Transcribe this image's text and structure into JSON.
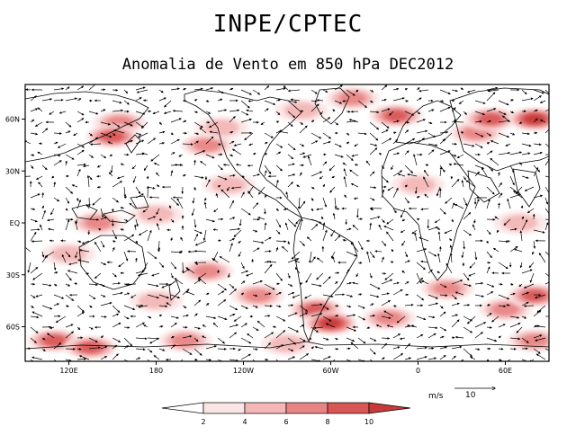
{
  "header": {
    "org": "INPE/CPTEC",
    "subtitle": "Anomalia de Vento em 850 hPa DEC2012"
  },
  "chart_data": {
    "type": "heatmap",
    "title": "Anomalia de Vento em 850 hPa DEC2012",
    "variable": "wind anomaly at 850 hPa (vectors) with speed shading",
    "x_ticks": [
      "120E",
      "180",
      "120W",
      "60W",
      "0",
      "60E"
    ],
    "x_tick_lon": [
      120,
      180,
      240,
      300,
      360,
      420
    ],
    "y_ticks": [
      "60N",
      "30N",
      "EQ",
      "30S",
      "60S"
    ],
    "y_tick_lat": [
      60,
      30,
      0,
      -30,
      -60
    ],
    "lon_range": [
      90,
      450
    ],
    "lat_range": [
      -80,
      80
    ],
    "colorbar": {
      "labels": [
        "2",
        "4",
        "6",
        "8",
        "10"
      ],
      "colors": [
        "#ffffff",
        "#fbe4e4",
        "#f4b6b6",
        "#e98484",
        "#d85656",
        "#c83a3a"
      ]
    },
    "reference_vector": {
      "units": "m/s",
      "value": "10"
    },
    "shaded_regions": [
      {
        "lon": 155,
        "lat": 58,
        "level": 3
      },
      {
        "lon": 150,
        "lat": 50,
        "level": 4
      },
      {
        "lon": 215,
        "lat": 45,
        "level": 3
      },
      {
        "lon": 225,
        "lat": 55,
        "level": 2
      },
      {
        "lon": 280,
        "lat": 65,
        "level": 2
      },
      {
        "lon": 315,
        "lat": 72,
        "level": 3
      },
      {
        "lon": 345,
        "lat": 62,
        "level": 4
      },
      {
        "lon": 400,
        "lat": 52,
        "level": 3
      },
      {
        "lon": 410,
        "lat": 60,
        "level": 4
      },
      {
        "lon": 440,
        "lat": 60,
        "level": 5
      },
      {
        "lon": 230,
        "lat": 22,
        "level": 2
      },
      {
        "lon": 360,
        "lat": 22,
        "level": 2
      },
      {
        "lon": 140,
        "lat": 0,
        "level": 3
      },
      {
        "lon": 180,
        "lat": 5,
        "level": 2
      },
      {
        "lon": 430,
        "lat": 0,
        "level": 2
      },
      {
        "lon": 120,
        "lat": -18,
        "level": 2
      },
      {
        "lon": 215,
        "lat": -28,
        "level": 3
      },
      {
        "lon": 180,
        "lat": -45,
        "level": 2
      },
      {
        "lon": 250,
        "lat": -42,
        "level": 3
      },
      {
        "lon": 290,
        "lat": -50,
        "level": 4
      },
      {
        "lon": 300,
        "lat": -58,
        "level": 5
      },
      {
        "lon": 340,
        "lat": -55,
        "level": 3
      },
      {
        "lon": 380,
        "lat": -38,
        "level": 3
      },
      {
        "lon": 420,
        "lat": -50,
        "level": 3
      },
      {
        "lon": 440,
        "lat": -42,
        "level": 4
      },
      {
        "lon": 110,
        "lat": -68,
        "level": 4
      },
      {
        "lon": 135,
        "lat": -72,
        "level": 4
      },
      {
        "lon": 200,
        "lat": -68,
        "level": 3
      },
      {
        "lon": 270,
        "lat": -70,
        "level": 2
      },
      {
        "lon": 440,
        "lat": -68,
        "level": 3
      }
    ]
  }
}
